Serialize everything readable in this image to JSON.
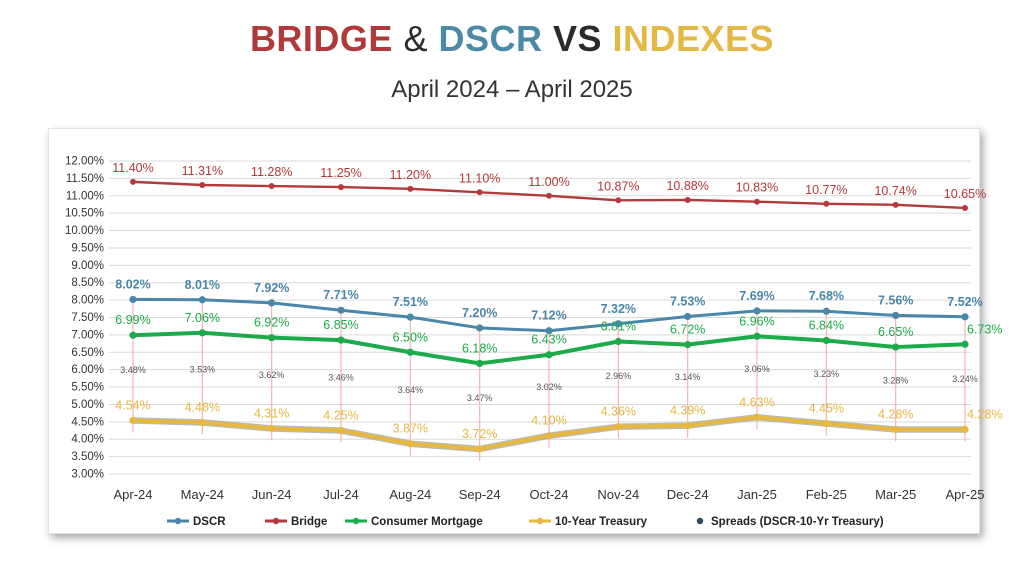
{
  "title": {
    "part1": "BRIDGE",
    "amp": " & ",
    "part2": "DSCR",
    "vs": " VS ",
    "part3": "INDEXES"
  },
  "subtitle": "April 2024 – April 2025",
  "colors": {
    "dscr": "#4a86a8",
    "bridge": "#b33a3a",
    "consumer": "#1daa4a",
    "treasury": "#e6b83f",
    "spread": "#2f4a5c",
    "spread_line": "#f2b5b5"
  },
  "chart_data": {
    "type": "line",
    "categories": [
      "Apr-24",
      "May-24",
      "Jun-24",
      "Jul-24",
      "Aug-24",
      "Sep-24",
      "Oct-24",
      "Nov-24",
      "Dec-24",
      "Jan-25",
      "Feb-25",
      "Mar-25",
      "Apr-25"
    ],
    "y_ticks": [
      "12.00%",
      "11.50%",
      "11.00%",
      "10.50%",
      "10.00%",
      "9.50%",
      "9.00%",
      "8.50%",
      "8.00%",
      "7.50%",
      "7.00%",
      "6.50%",
      "6.00%",
      "5.50%",
      "5.00%",
      "4.50%",
      "4.00%",
      "3.50%",
      "3.00%"
    ],
    "ylim": [
      3.0,
      12.0
    ],
    "grid": true,
    "legend_position": "bottom",
    "series": [
      {
        "key": "bridge",
        "name": "Bridge",
        "values": [
          11.4,
          11.31,
          11.28,
          11.25,
          11.2,
          11.1,
          11.0,
          10.87,
          10.88,
          10.83,
          10.77,
          10.74,
          10.65
        ],
        "labels": [
          "11.40%",
          "11.31%",
          "11.28%",
          "11.25%",
          "11.20%",
          "11.10%",
          "11.00%",
          "10.87%",
          "10.88%",
          "10.83%",
          "10.77%",
          "10.74%",
          "10.65%"
        ]
      },
      {
        "key": "dscr",
        "name": "DSCR",
        "values": [
          8.02,
          8.01,
          7.92,
          7.71,
          7.51,
          7.2,
          7.12,
          7.32,
          7.53,
          7.69,
          7.68,
          7.56,
          7.52
        ],
        "labels": [
          "8.02%",
          "8.01%",
          "7.92%",
          "7.71%",
          "7.51%",
          "7.20%",
          "7.12%",
          "7.32%",
          "7.53%",
          "7.69%",
          "7.68%",
          "7.56%",
          "7.52%"
        ]
      },
      {
        "key": "consumer",
        "name": "Consumer Mortgage",
        "values": [
          6.99,
          7.06,
          6.92,
          6.85,
          6.5,
          6.18,
          6.43,
          6.81,
          6.72,
          6.96,
          6.84,
          6.65,
          6.73
        ],
        "labels": [
          "6.99%",
          "7.06%",
          "6.92%",
          "6.85%",
          "6.50%",
          "6.18%",
          "6.43%",
          "6.81%",
          "6.72%",
          "6.96%",
          "6.84%",
          "6.65%",
          "6.73%"
        ]
      },
      {
        "key": "treasury",
        "name": "10-Year Treasury",
        "values": [
          4.54,
          4.48,
          4.31,
          4.25,
          3.87,
          3.72,
          4.1,
          4.36,
          4.39,
          4.63,
          4.45,
          4.28,
          4.28
        ],
        "labels": [
          "4.54%",
          "4.48%",
          "4.31%",
          "4.25%",
          "3.87%",
          "3.72%",
          "4.10%",
          "4.36%",
          "4.39%",
          "4.63%",
          "4.45%",
          "4.28%",
          "4.28%"
        ]
      }
    ],
    "spreads": {
      "name": "Spreads (DSCR-10-Yr Treasury)",
      "values": [
        3.48,
        3.53,
        3.62,
        3.46,
        3.64,
        3.47,
        3.02,
        2.96,
        3.14,
        3.06,
        3.23,
        3.28,
        3.24
      ],
      "labels": [
        "3.48%",
        "3.53%",
        "3.62%",
        "3.46%",
        "3.64%",
        "3.47%",
        "3.02%",
        "2.96%",
        "3.14%",
        "3.06%",
        "3.23%",
        "3.28%",
        "3.24%"
      ]
    }
  }
}
